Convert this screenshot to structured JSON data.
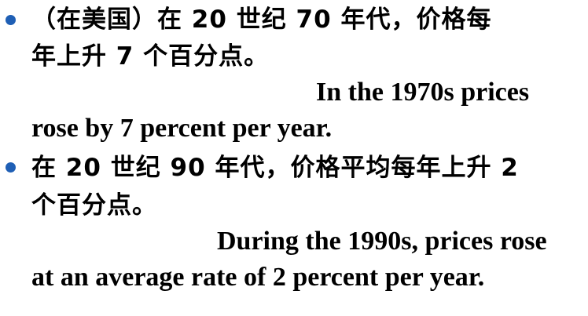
{
  "colors": {
    "bullet": "#1f5fb5",
    "text": "#000000"
  },
  "items": [
    {
      "bullet_icon": "bullet-dot-icon",
      "zh_line1": "（在美国）在 20 世纪 70 年代，价格每",
      "zh_line2": "年上升 7 个百分点。",
      "en_line1": "In the 1970s prices",
      "en_line2": "rose by 7 percent per year."
    },
    {
      "bullet_icon": "bullet-dot-icon",
      "zh_line1": "在 20 世纪 90 年代，价格平均每年上升 2",
      "zh_line2": "个百分点。",
      "en_line1": "During the 1990s, prices rose",
      "en_line2": "at an average rate of 2 percent per year."
    }
  ]
}
